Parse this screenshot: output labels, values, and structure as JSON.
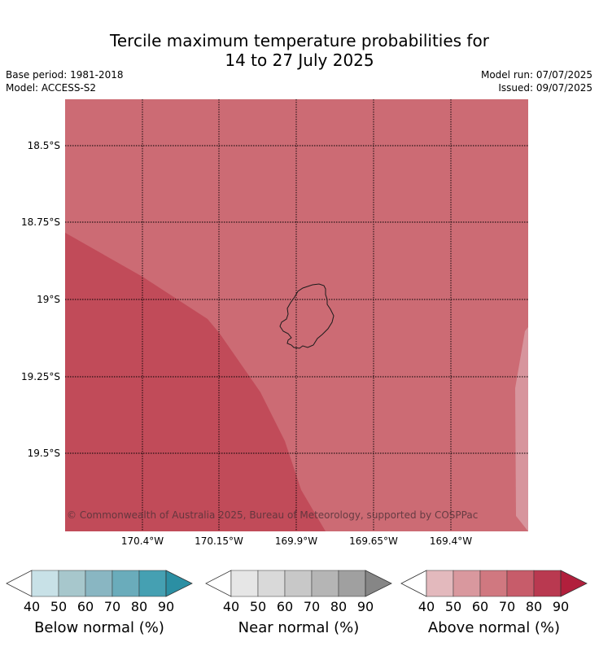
{
  "title_line1": "Tercile maximum temperature probabilities for",
  "title_line2": "14 to 27 July 2025",
  "meta": {
    "base_period": "Base period: 1981-2018",
    "model": "Model: ACCESS-S2",
    "model_run": "Model run: 07/07/2025",
    "issued": "Issued: 09/07/2025"
  },
  "map": {
    "lat_labels": [
      "18.5°S",
      "18.75°S",
      "19°S",
      "19.25°S",
      "19.5°S"
    ],
    "lon_labels": [
      "170.4°W",
      "170.15°W",
      "169.9°W",
      "169.65°W",
      "169.4°W"
    ],
    "credit": "© Commonwealth of Australia 2025, Bureau of Meteorology, supported by COSPPac",
    "colors": {
      "above_60_70": "#cc6b74",
      "above_70_80": "#c14b59",
      "above_50_60": "#d7959d",
      "coastline": "#1a1a1a",
      "gridline": "#000000"
    }
  },
  "colorbars": [
    {
      "name": "Below normal (%)",
      "ticks": [
        "40",
        "50",
        "60",
        "70",
        "80",
        "90"
      ],
      "colors": [
        "#ffffff",
        "#c8e1e7",
        "#a7c7cc",
        "#89b6c2",
        "#6aacbb",
        "#45a0b2",
        "#2b8fa3"
      ]
    },
    {
      "name": "Near normal (%)",
      "ticks": [
        "40",
        "50",
        "60",
        "70",
        "80",
        "90"
      ],
      "colors": [
        "#ffffff",
        "#e6e6e6",
        "#d9d9d9",
        "#c8c8c8",
        "#b5b5b5",
        "#a0a0a0",
        "#868686"
      ]
    },
    {
      "name": "Above normal (%)",
      "ticks": [
        "40",
        "50",
        "60",
        "70",
        "80",
        "90"
      ],
      "colors": [
        "#ffffff",
        "#e3b9bd",
        "#d9989e",
        "#d07880",
        "#c75c6a",
        "#b93950",
        "#b11f3c"
      ]
    }
  ]
}
